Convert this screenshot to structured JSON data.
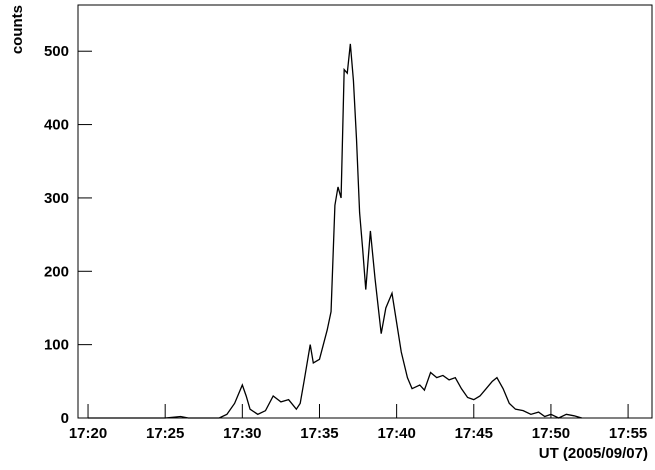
{
  "chart_data": {
    "type": "line",
    "x_label": "UT (2005/09/07)",
    "y_label": "counts",
    "x": [
      1040,
      1045,
      1046,
      1046.5,
      1048.5,
      1049,
      1049.5,
      1050,
      1050.25,
      1050.5,
      1051,
      1051.5,
      1052,
      1052.5,
      1053,
      1053.5,
      1053.75,
      1054,
      1054.4,
      1054.6,
      1055,
      1055.5,
      1055.75,
      1056,
      1056.2,
      1056.4,
      1056.6,
      1056.8,
      1057,
      1057.2,
      1057.4,
      1057.6,
      1057.8,
      1058,
      1058.3,
      1058.6,
      1059,
      1059.3,
      1059.7,
      1060,
      1060.3,
      1060.7,
      1061,
      1061.5,
      1061.8,
      1062.2,
      1062.6,
      1063,
      1063.4,
      1063.8,
      1064.2,
      1064.6,
      1065,
      1065.4,
      1065.8,
      1066.2,
      1066.5,
      1066.9,
      1067.3,
      1067.7,
      1068.2,
      1068.7,
      1069.2,
      1069.6,
      1070,
      1070.5,
      1071,
      1071.5,
      1072
    ],
    "series": [
      {
        "color": "#000000",
        "values": [
          0,
          0,
          2,
          0,
          0,
          5,
          20,
          45,
          30,
          12,
          5,
          10,
          30,
          22,
          25,
          12,
          20,
          50,
          100,
          75,
          80,
          120,
          145,
          290,
          315,
          300,
          475,
          470,
          510,
          460,
          380,
          280,
          230,
          175,
          255,
          190,
          115,
          150,
          170,
          130,
          90,
          55,
          40,
          45,
          38,
          62,
          55,
          58,
          52,
          55,
          40,
          28,
          25,
          30,
          40,
          50,
          55,
          40,
          20,
          12,
          10,
          5,
          8,
          2,
          5,
          0,
          5,
          3,
          0
        ]
      }
    ],
    "xlim": [
      1039.35,
      1076.55
    ],
    "ylim": [
      0,
      563
    ],
    "xticks": [
      {
        "value": 1040,
        "label": "17:20"
      },
      {
        "value": 1045,
        "label": "17:25"
      },
      {
        "value": 1050,
        "label": "17:30"
      },
      {
        "value": 1055,
        "label": "17:35"
      },
      {
        "value": 1060,
        "label": "17:40"
      },
      {
        "value": 1065,
        "label": "17:45"
      },
      {
        "value": 1070,
        "label": "17:50"
      },
      {
        "value": 1075,
        "label": "17:55"
      }
    ],
    "yticks": [
      0,
      100,
      200,
      300,
      400,
      500
    ]
  }
}
